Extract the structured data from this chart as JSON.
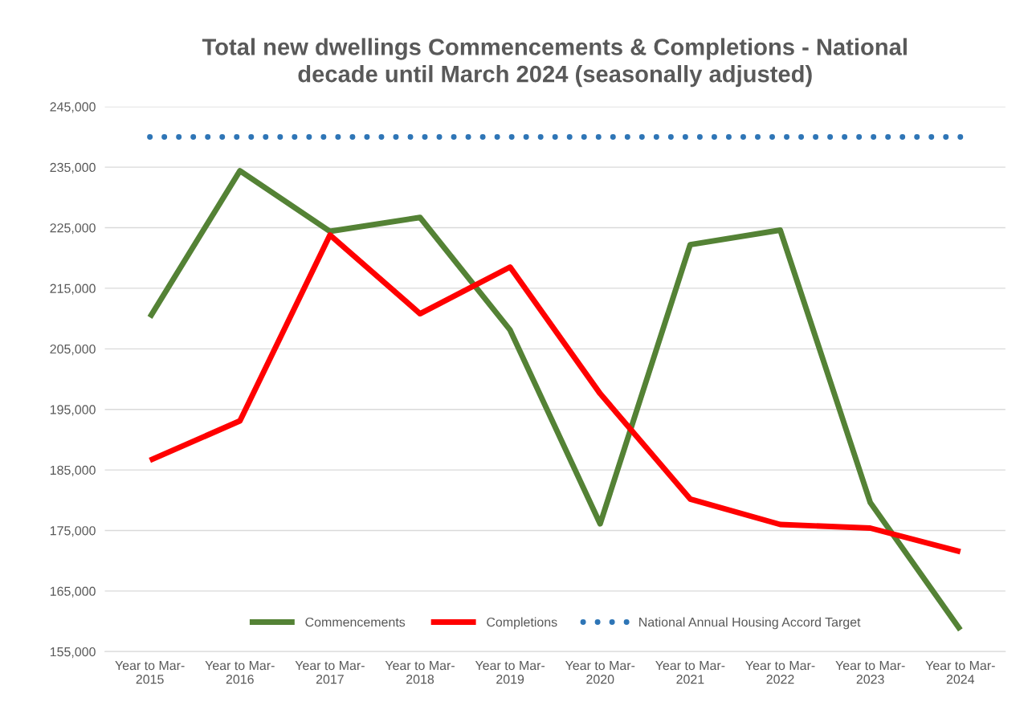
{
  "chart_data": {
    "type": "line",
    "title": "Total new dwellings Commencements & Completions - National\ndecade until March 2024 (seasonally adjusted)",
    "categories": [
      "Year to Mar-\n2015",
      "Year to Mar-\n2016",
      "Year to Mar-\n2017",
      "Year to Mar-\n2018",
      "Year to Mar-\n2019",
      "Year to Mar-\n2020",
      "Year to Mar-\n2021",
      "Year to Mar-\n2022",
      "Year to Mar-\n2023",
      "Year to Mar-\n2024"
    ],
    "series": [
      {
        "name": "Commencements",
        "color": "#548235",
        "line_style": "solid",
        "values": [
          210200,
          234400,
          224400,
          226700,
          208100,
          176100,
          222200,
          224600,
          179600,
          158600
        ]
      },
      {
        "name": "Completions",
        "color": "#ff0000",
        "line_style": "solid",
        "values": [
          186600,
          193100,
          223800,
          210800,
          218500,
          197600,
          180200,
          176000,
          175400,
          171500
        ]
      },
      {
        "name": "National Annual Housing Accord Target",
        "color": "#2e75b6",
        "line_style": "dotted",
        "values": [
          240000,
          240000,
          240000,
          240000,
          240000,
          240000,
          240000,
          240000,
          240000,
          240000
        ]
      }
    ],
    "ylim": [
      155000,
      245000
    ],
    "yticks": [
      {
        "value": 155000,
        "label": "155,000"
      },
      {
        "value": 165000,
        "label": "165,000"
      },
      {
        "value": 175000,
        "label": "175,000"
      },
      {
        "value": 185000,
        "label": "185,000"
      },
      {
        "value": 195000,
        "label": "195,000"
      },
      {
        "value": 205000,
        "label": "205,000"
      },
      {
        "value": 215000,
        "label": "215,000"
      },
      {
        "value": 225000,
        "label": "225,000"
      },
      {
        "value": 235000,
        "label": "235,000"
      },
      {
        "value": 245000,
        "label": "245,000"
      }
    ],
    "grid": "y",
    "legend": "bottom",
    "marker": "none"
  }
}
